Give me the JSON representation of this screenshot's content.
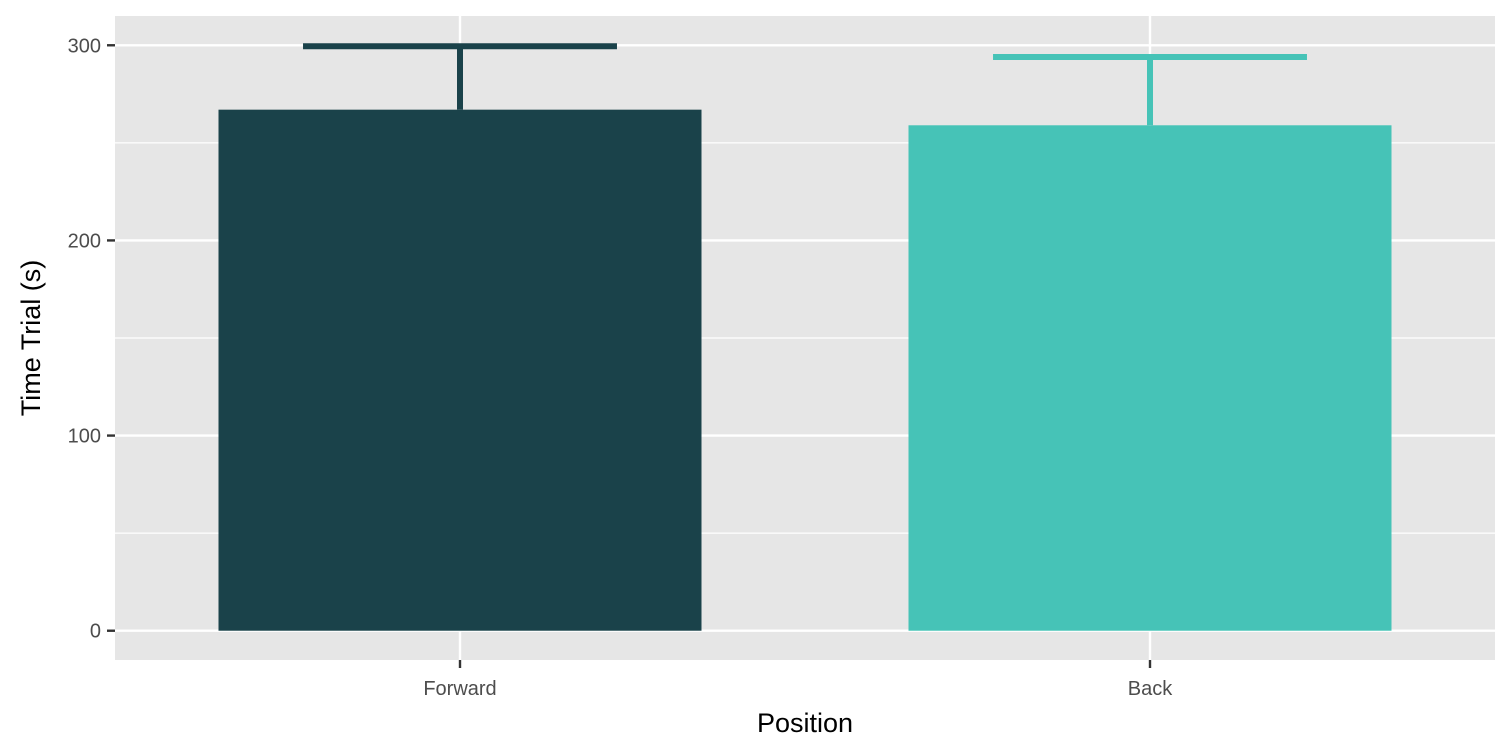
{
  "chart_data": {
    "type": "bar",
    "title": "",
    "xlabel": "Position",
    "ylabel": "Time Trial (s)",
    "categories": [
      "Forward",
      "Back"
    ],
    "values": [
      267,
      259
    ],
    "error_upper": [
      299.5,
      294
    ],
    "colors": [
      "#1a424a",
      "#46c3b7"
    ],
    "ylim": [
      -15,
      315
    ],
    "yticks": [
      0,
      100,
      200,
      300
    ],
    "yticks_minor": [
      50,
      150,
      250
    ],
    "grid": true,
    "legend": "none",
    "panel_color": "#e6e6e6",
    "grid_color": "#ffffff"
  }
}
